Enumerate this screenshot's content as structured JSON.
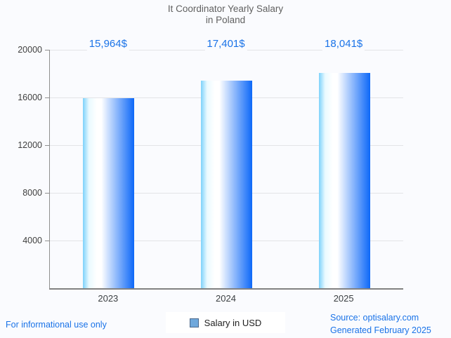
{
  "title": {
    "line1": "It Coordinator Yearly Salary",
    "line2": "in Poland"
  },
  "chart_data": {
    "type": "bar",
    "title": "It Coordinator Yearly Salary in Poland",
    "categories": [
      "2023",
      "2024",
      "2025"
    ],
    "values": [
      15964,
      17401,
      18041
    ],
    "value_labels": [
      "15,964$",
      "17,401$",
      "18,041$"
    ],
    "xlabel": "",
    "ylabel": "",
    "ylim": [
      0,
      20000
    ],
    "yticks": [
      20000,
      16000,
      12000,
      8000,
      4000
    ],
    "grid": true,
    "legend": {
      "label": "Salary in USD",
      "position": "bottom-center"
    }
  },
  "footer": {
    "disclaimer": "For informational use only",
    "source_line1": "Source: optisalary.com",
    "source_line2": "Generated February 2025"
  },
  "colors": {
    "background": "#fafbfe",
    "title_text": "#616161",
    "value_text": "#1a73e8",
    "footer_text": "#1a73e8",
    "bar_gradient_left": "#7dd2fb",
    "bar_gradient_mid": "#ffffff",
    "bar_gradient_right": "#0d68f8",
    "gridline": "#e3e4e7",
    "axis_line": "#8f8f8f",
    "legend_swatch_fill": "#6fa8dc",
    "legend_swatch_border": "#49688c"
  }
}
